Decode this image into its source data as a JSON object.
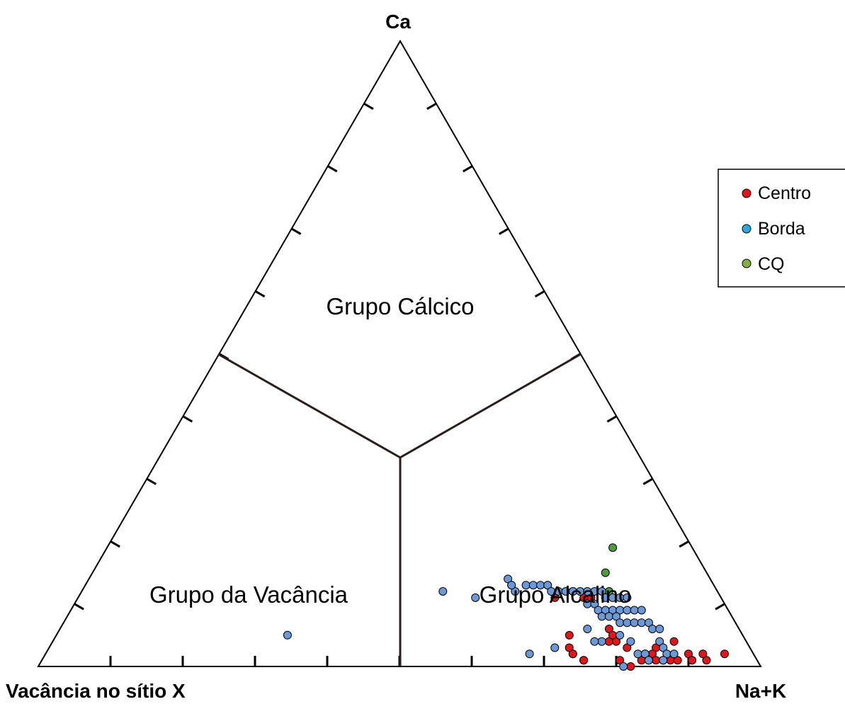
{
  "chart_data": {
    "type": "scatter",
    "diagram": "ternary",
    "vertex_labels": {
      "top": "Ca",
      "left": "Vacância no sítio X",
      "right": "Na+K"
    },
    "region_labels": [
      {
        "id": "calcic",
        "text": "Grupo Cálcico"
      },
      {
        "id": "vacancy",
        "text": "Grupo da Vacância"
      },
      {
        "id": "alkali",
        "text": "Grupo Alcalino"
      }
    ],
    "tick_divisions": 10,
    "legend": {
      "placement": "top-right"
    },
    "series": [
      {
        "name": "Centro",
        "color": "#e0161b",
        "x": [
          0.64,
          0.66,
          0.71,
          0.7,
          0.76,
          0.78,
          0.71,
          0.77,
          0.73,
          0.72,
          0.73,
          0.75,
          0.75,
          0.83,
          0.84,
          0.84,
          0.86,
          0.86,
          0.87,
          0.88,
          0.84,
          0.86,
          0.89,
          0.9,
          0.85,
          0.8,
          0.83,
          0.8,
          0.82,
          0.92,
          0.91,
          0.9,
          0.94,
          0.77
        ],
        "y": [
          0.13,
          0.11,
          0.11,
          0.11,
          0.06,
          0.04,
          0.05,
          0.04,
          0.02,
          0.03,
          0.02,
          0.01,
          0.01,
          0.02,
          0.03,
          0.02,
          0.04,
          0.01,
          0.01,
          0.01,
          0.01,
          0.01,
          0.02,
          0.01,
          0.01,
          0.03,
          0.01,
          0.01,
          0.0,
          0.01,
          0.02,
          0.01,
          0.02,
          0.05
        ],
        "xy_convention": "x = Na+K fraction, y = Ca fraction"
      },
      {
        "name": "Borda",
        "color": "#6b98d6",
        "x": [
          0.59,
          0.6,
          0.61,
          0.62,
          0.63,
          0.64,
          0.65,
          0.66,
          0.67,
          0.68,
          0.69,
          0.7,
          0.71,
          0.72,
          0.73,
          0.74,
          0.75,
          0.76,
          0.71,
          0.72,
          0.73,
          0.74,
          0.75,
          0.76,
          0.77,
          0.78,
          0.79,
          0.74,
          0.75,
          0.76,
          0.77,
          0.78,
          0.79,
          0.8,
          0.81,
          0.82,
          0.83,
          0.58,
          0.59,
          0.5,
          0.32,
          0.73,
          0.76,
          0.78,
          0.8,
          0.84,
          0.85,
          0.86,
          0.87,
          0.82,
          0.83,
          0.84,
          0.86,
          0.75,
          0.81,
          0.7,
          0.67,
          0.55
        ],
        "y": [
          0.13,
          0.12,
          0.13,
          0.13,
          0.13,
          0.13,
          0.12,
          0.12,
          0.12,
          0.12,
          0.12,
          0.12,
          0.12,
          0.12,
          0.11,
          0.11,
          0.11,
          0.11,
          0.1,
          0.1,
          0.09,
          0.09,
          0.09,
          0.09,
          0.09,
          0.09,
          0.09,
          0.08,
          0.08,
          0.08,
          0.07,
          0.07,
          0.07,
          0.07,
          0.07,
          0.06,
          0.06,
          0.14,
          0.13,
          0.12,
          0.05,
          0.06,
          0.04,
          0.05,
          0.04,
          0.04,
          0.03,
          0.02,
          0.02,
          0.02,
          0.02,
          0.01,
          0.01,
          0.04,
          0.0,
          0.03,
          0.02,
          0.11
        ],
        "xy_convention": "x = Na+K fraction, y = Ca fraction"
      },
      {
        "name": "CQ",
        "color": "#4c9b3f",
        "x": [
          0.7,
          0.71,
          0.68,
          0.73
        ],
        "y": [
          0.19,
          0.15,
          0.12,
          0.12
        ],
        "xy_convention": "x = Na+K fraction, y = Ca fraction"
      }
    ]
  }
}
